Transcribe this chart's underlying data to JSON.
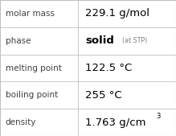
{
  "rows": [
    {
      "label": "molar mass",
      "value": "229.1 g/mol",
      "value2_small": null,
      "superscript": null
    },
    {
      "label": "phase",
      "value": "solid",
      "value2_small": "(at STP)",
      "superscript": null
    },
    {
      "label": "melting point",
      "value": "122.5 °C",
      "value2_small": null,
      "superscript": null
    },
    {
      "label": "boiling point",
      "value": "255 °C",
      "value2_small": null,
      "superscript": null
    },
    {
      "label": "density",
      "value": "1.763 g/cm",
      "value2_small": null,
      "superscript": "3"
    }
  ],
  "bg_color": "#ffffff",
  "border_color": "#c0c0c0",
  "label_color": "#404040",
  "value_color": "#000000",
  "small_color": "#808080",
  "col_split": 0.445,
  "label_fontsize": 7.5,
  "value_fontsize": 9.5,
  "small_fontsize": 5.8,
  "super_fontsize": 6.0
}
